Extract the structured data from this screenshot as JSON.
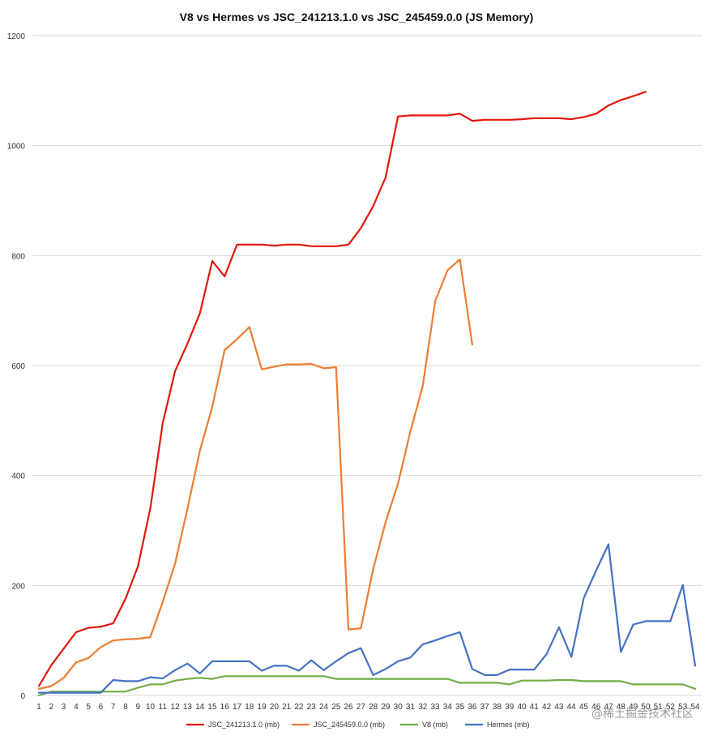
{
  "chart_data": {
    "type": "line",
    "title": "V8 vs Hermes vs  JSC_241213.1.0 vs JSC_245459.0.0  (JS Memory)",
    "xlabel": "",
    "ylabel": "",
    "ylim": [
      0,
      1200
    ],
    "y_ticks": [
      0,
      200,
      400,
      600,
      800,
      1000,
      1200
    ],
    "grid": true,
    "legend_position": "bottom",
    "x": [
      1,
      2,
      3,
      4,
      5,
      6,
      7,
      8,
      9,
      10,
      11,
      12,
      13,
      14,
      15,
      16,
      17,
      18,
      19,
      20,
      21,
      22,
      23,
      24,
      25,
      26,
      27,
      28,
      29,
      30,
      31,
      32,
      33,
      34,
      35,
      36,
      37,
      38,
      39,
      40,
      41,
      42,
      43,
      44,
      45,
      46,
      47,
      48,
      49,
      50,
      51,
      52,
      53,
      54
    ],
    "x_tick_labels": [
      "1",
      "2",
      "3",
      "4",
      "5",
      "6",
      "7",
      "8",
      "9",
      "10",
      "11",
      "12",
      "13",
      "14",
      "15",
      "16",
      "17",
      "18",
      "19",
      "20",
      "21",
      "22",
      "23",
      "24",
      "25",
      "26",
      "27",
      "28",
      "29",
      "30",
      "31",
      "32",
      "33",
      "34",
      "35",
      "36",
      "37",
      "38",
      "39",
      "40",
      "41",
      "42",
      "43",
      "44",
      "45",
      "46",
      "47",
      "48",
      "49",
      "50",
      "51",
      "52",
      "53",
      "54"
    ],
    "series": [
      {
        "name": "JSC_241213.1.0 (mb)",
        "color": "#e3170a",
        "values": [
          17,
          55,
          85,
          115,
          123,
          125,
          131,
          176,
          235,
          340,
          495,
          590,
          640,
          695,
          790,
          762,
          820,
          820,
          820,
          818,
          820,
          820,
          817,
          817,
          817,
          820,
          850,
          890,
          942,
          1053,
          1055,
          1055,
          1055,
          1055,
          1058,
          1045,
          1047,
          1047,
          1047,
          1048,
          1050,
          1050,
          1050,
          1048,
          1052,
          1058,
          1073,
          1083,
          1090,
          1098,
          null,
          null,
          null,
          null
        ]
      },
      {
        "name": "JSC_245459.0.0 (mb)",
        "color": "#ed7d31",
        "values": [
          12,
          17,
          32,
          60,
          68,
          88,
          100,
          102,
          103,
          106,
          170,
          240,
          340,
          445,
          525,
          628,
          648,
          670,
          593,
          598,
          602,
          602,
          603,
          595,
          597,
          120,
          122,
          230,
          315,
          385,
          480,
          563,
          717,
          773,
          793,
          638,
          null,
          null,
          null,
          null,
          null,
          null,
          null,
          null,
          null,
          null,
          null,
          null,
          null,
          null,
          null,
          null,
          null,
          null
        ]
      },
      {
        "name": "V8 (mb)",
        "color": "#70ad47",
        "values": [
          0,
          7,
          7,
          7,
          7,
          7,
          7,
          7,
          14,
          20,
          20,
          27,
          30,
          32,
          30,
          35,
          35,
          35,
          35,
          35,
          35,
          35,
          35,
          35,
          30,
          30,
          30,
          30,
          30,
          30,
          30,
          30,
          30,
          30,
          23,
          23,
          23,
          23,
          20,
          27,
          27,
          27,
          28,
          28,
          26,
          26,
          26,
          26,
          20,
          20,
          20,
          20,
          20,
          12
        ]
      },
      {
        "name": "Hermes (mb)",
        "color": "#4472c4",
        "values": [
          5,
          5,
          5,
          5,
          5,
          5,
          28,
          26,
          26,
          33,
          31,
          46,
          58,
          40,
          62,
          62,
          62,
          62,
          45,
          54,
          54,
          45,
          64,
          46,
          62,
          77,
          86,
          37,
          48,
          62,
          69,
          93,
          100,
          108,
          115,
          48,
          37,
          37,
          47,
          47,
          47,
          75,
          124,
          70,
          177,
          227,
          275,
          79,
          129,
          135,
          135,
          135,
          201,
          54
        ]
      }
    ]
  },
  "watermark": "@稀土掘金技术社区"
}
